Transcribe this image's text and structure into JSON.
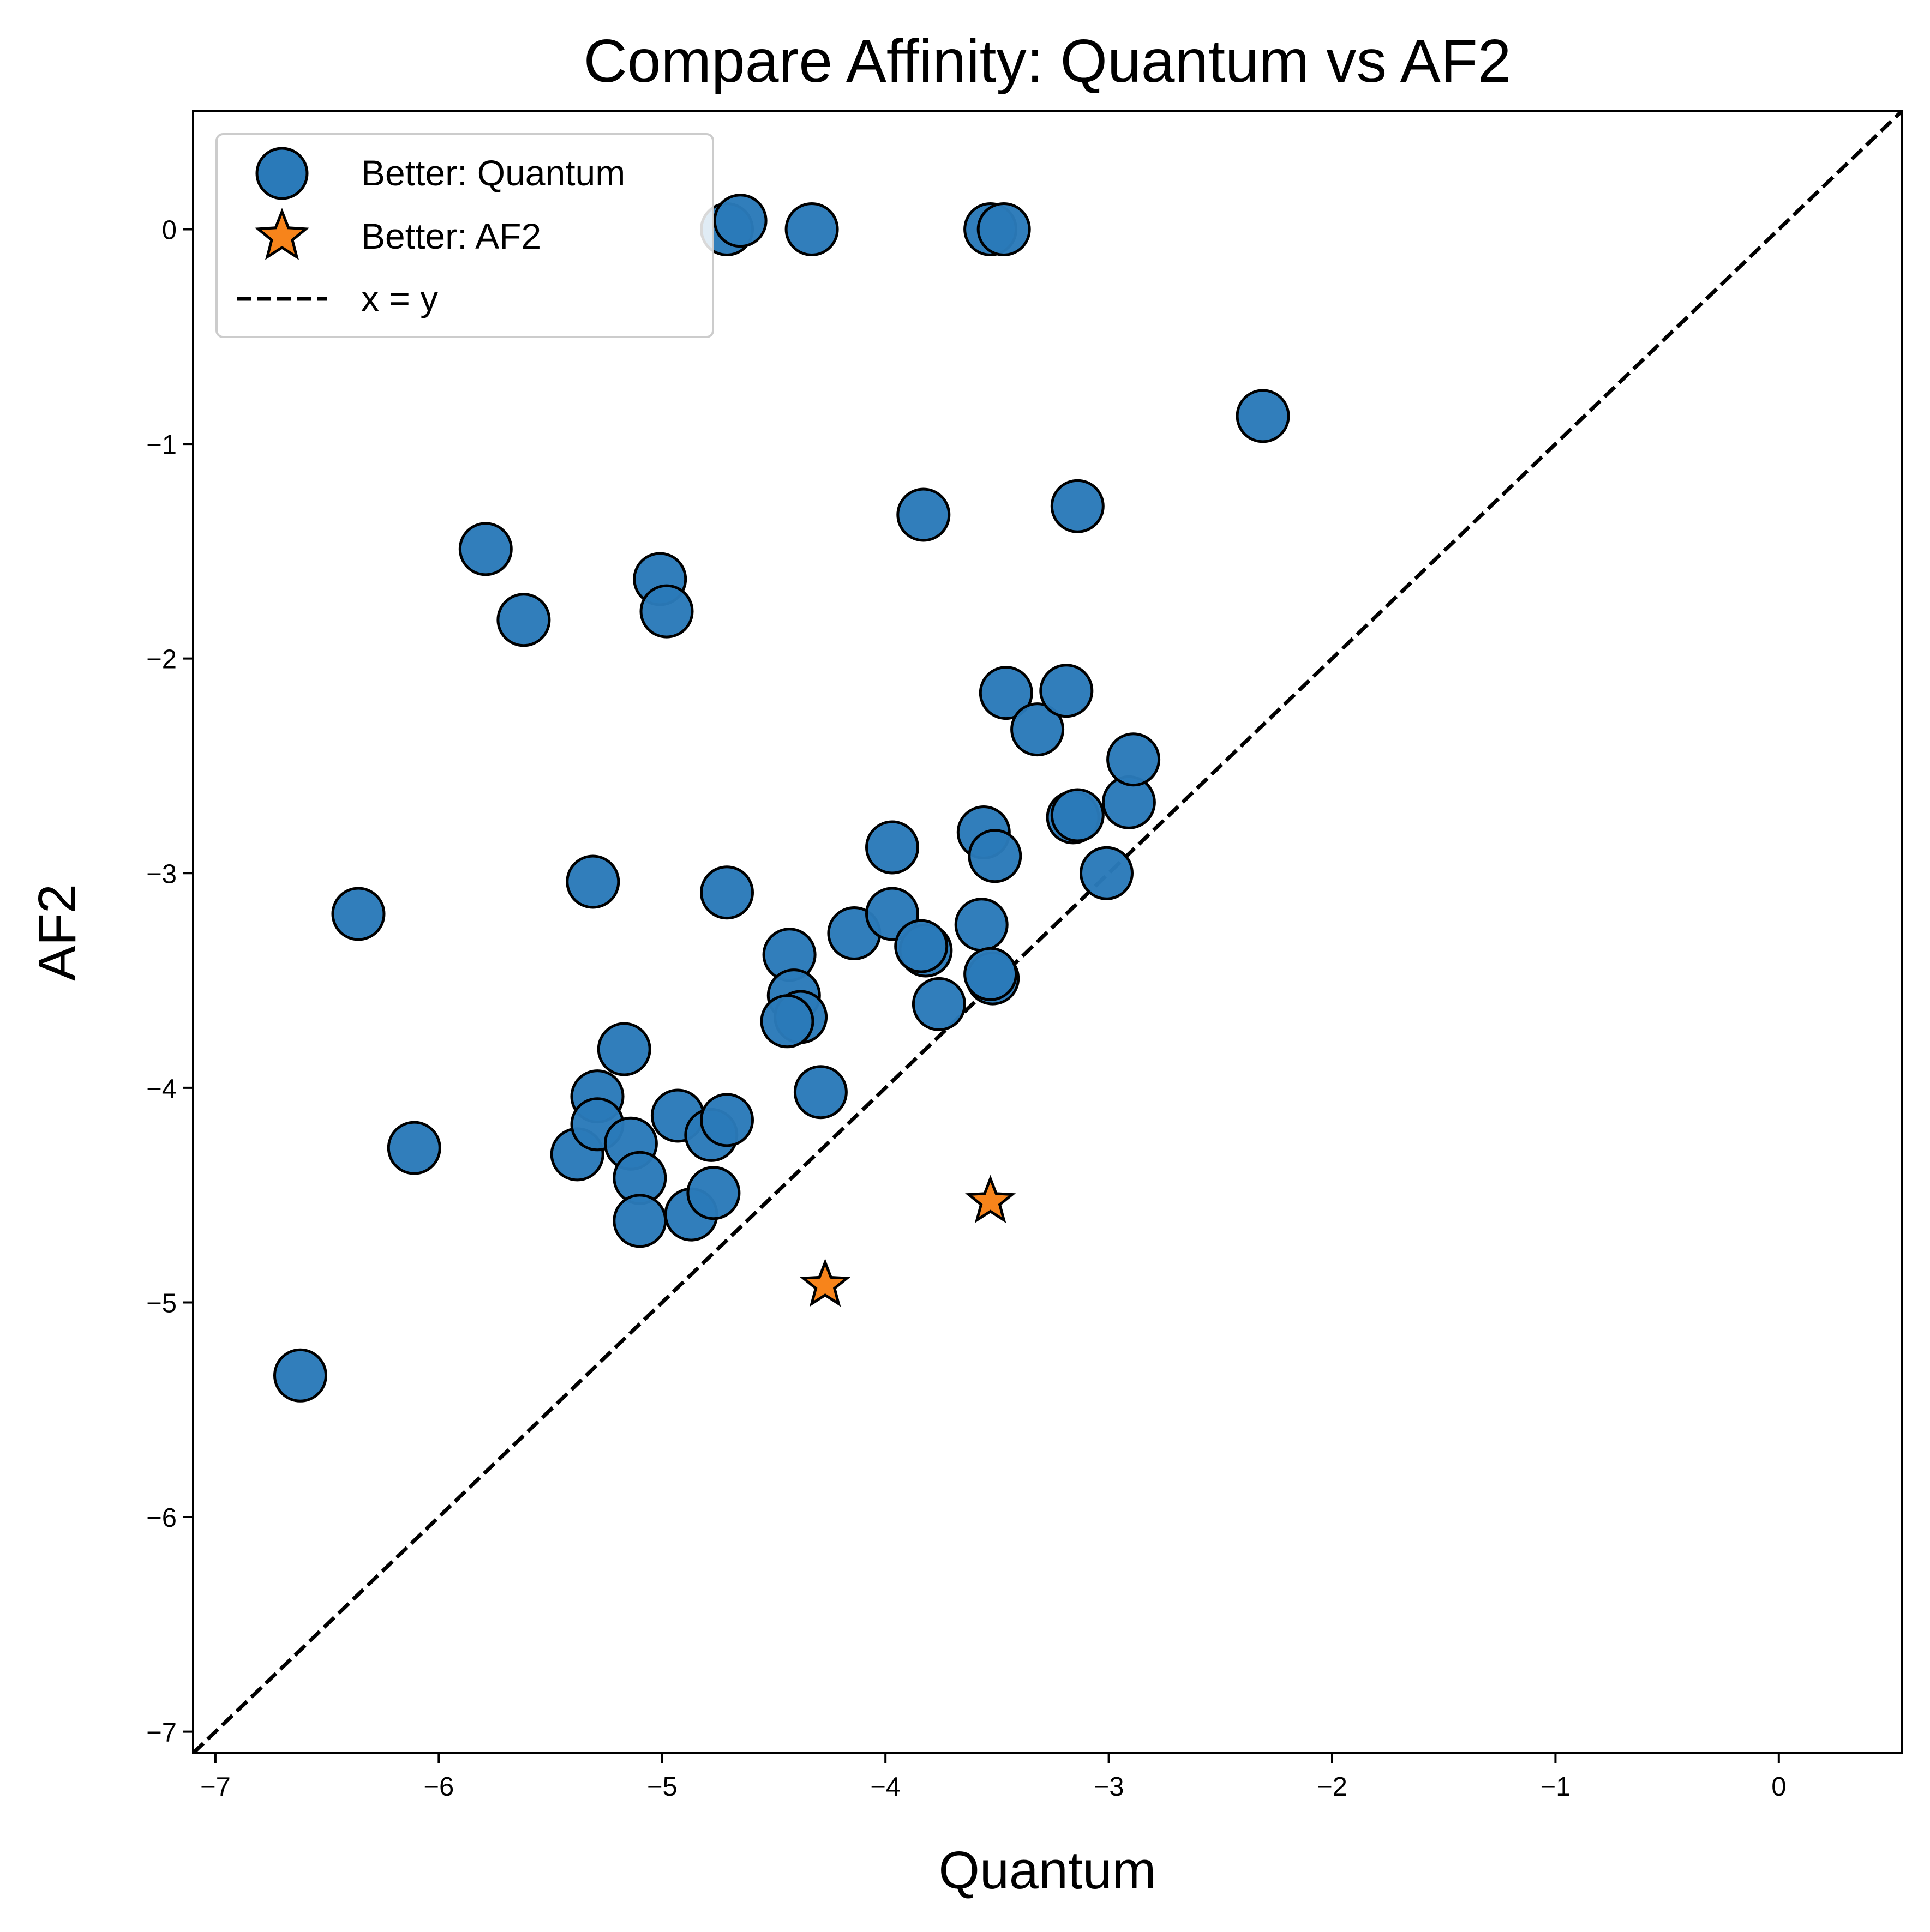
{
  "chart_data": {
    "type": "scatter",
    "title": "Compare Affinity: Quantum vs AF2",
    "xlabel": "Quantum",
    "ylabel": "AF2",
    "xlim": [
      -7.1,
      0.55
    ],
    "ylim": [
      -7.1,
      0.55
    ],
    "xticks": [
      -7,
      -6,
      -5,
      -4,
      -3,
      -2,
      -1,
      0
    ],
    "yticks": [
      -7,
      -6,
      -5,
      -4,
      -3,
      -2,
      -1,
      0
    ],
    "grid": false,
    "legend_position": "top-left",
    "reference_line": {
      "label": "x = y",
      "style": "dashed",
      "color": "#000000"
    },
    "series": [
      {
        "name": "Better: Quantum",
        "marker": "circle",
        "color": "#2a7ab9",
        "points": [
          {
            "x": -6.62,
            "y": -5.34
          },
          {
            "x": -6.36,
            "y": -3.19
          },
          {
            "x": -6.11,
            "y": -4.28
          },
          {
            "x": -5.79,
            "y": -1.49
          },
          {
            "x": -5.62,
            "y": -1.82
          },
          {
            "x": -5.38,
            "y": -4.31
          },
          {
            "x": -5.31,
            "y": -3.04
          },
          {
            "x": -5.29,
            "y": -4.04
          },
          {
            "x": -5.29,
            "y": -4.17
          },
          {
            "x": -5.17,
            "y": -3.82
          },
          {
            "x": -5.14,
            "y": -4.26
          },
          {
            "x": -5.1,
            "y": -4.42
          },
          {
            "x": -5.1,
            "y": -4.62
          },
          {
            "x": -5.01,
            "y": -1.63
          },
          {
            "x": -4.98,
            "y": -1.78
          },
          {
            "x": -4.93,
            "y": -4.13
          },
          {
            "x": -4.87,
            "y": -4.59
          },
          {
            "x": -4.78,
            "y": -4.22
          },
          {
            "x": -4.77,
            "y": -4.49
          },
          {
            "x": -4.71,
            "y": -3.09
          },
          {
            "x": -4.71,
            "y": -4.15
          },
          {
            "x": -4.71,
            "y": 0.0
          },
          {
            "x": -4.65,
            "y": 0.04
          },
          {
            "x": -4.43,
            "y": -3.38
          },
          {
            "x": -4.41,
            "y": -3.57
          },
          {
            "x": -4.38,
            "y": -3.67
          },
          {
            "x": -4.44,
            "y": -3.69
          },
          {
            "x": -4.33,
            "y": 0.0
          },
          {
            "x": -4.29,
            "y": -4.02
          },
          {
            "x": -4.14,
            "y": -3.28
          },
          {
            "x": -3.97,
            "y": -2.88
          },
          {
            "x": -3.97,
            "y": -3.19
          },
          {
            "x": -3.82,
            "y": -3.36
          },
          {
            "x": -3.84,
            "y": -3.34
          },
          {
            "x": -3.83,
            "y": -1.33
          },
          {
            "x": -3.76,
            "y": -3.61
          },
          {
            "x": -3.57,
            "y": -3.24
          },
          {
            "x": -3.56,
            "y": -2.81
          },
          {
            "x": -3.52,
            "y": -3.49
          },
          {
            "x": -3.53,
            "y": -3.47
          },
          {
            "x": -3.53,
            "y": 0.0
          },
          {
            "x": -3.51,
            "y": -2.92
          },
          {
            "x": -3.47,
            "y": 0.0
          },
          {
            "x": -3.46,
            "y": -2.16
          },
          {
            "x": -3.32,
            "y": -2.33
          },
          {
            "x": -3.19,
            "y": -2.15
          },
          {
            "x": -3.16,
            "y": -2.74
          },
          {
            "x": -3.14,
            "y": -2.73
          },
          {
            "x": -3.14,
            "y": -1.29
          },
          {
            "x": -3.01,
            "y": -3.0
          },
          {
            "x": -2.91,
            "y": -2.67
          },
          {
            "x": -2.89,
            "y": -2.47
          },
          {
            "x": -2.31,
            "y": -0.87
          }
        ]
      },
      {
        "name": "Better: AF2",
        "marker": "star",
        "color": "#f7841b",
        "points": [
          {
            "x": -4.27,
            "y": -4.92
          },
          {
            "x": -3.53,
            "y": -4.53
          }
        ]
      }
    ]
  }
}
